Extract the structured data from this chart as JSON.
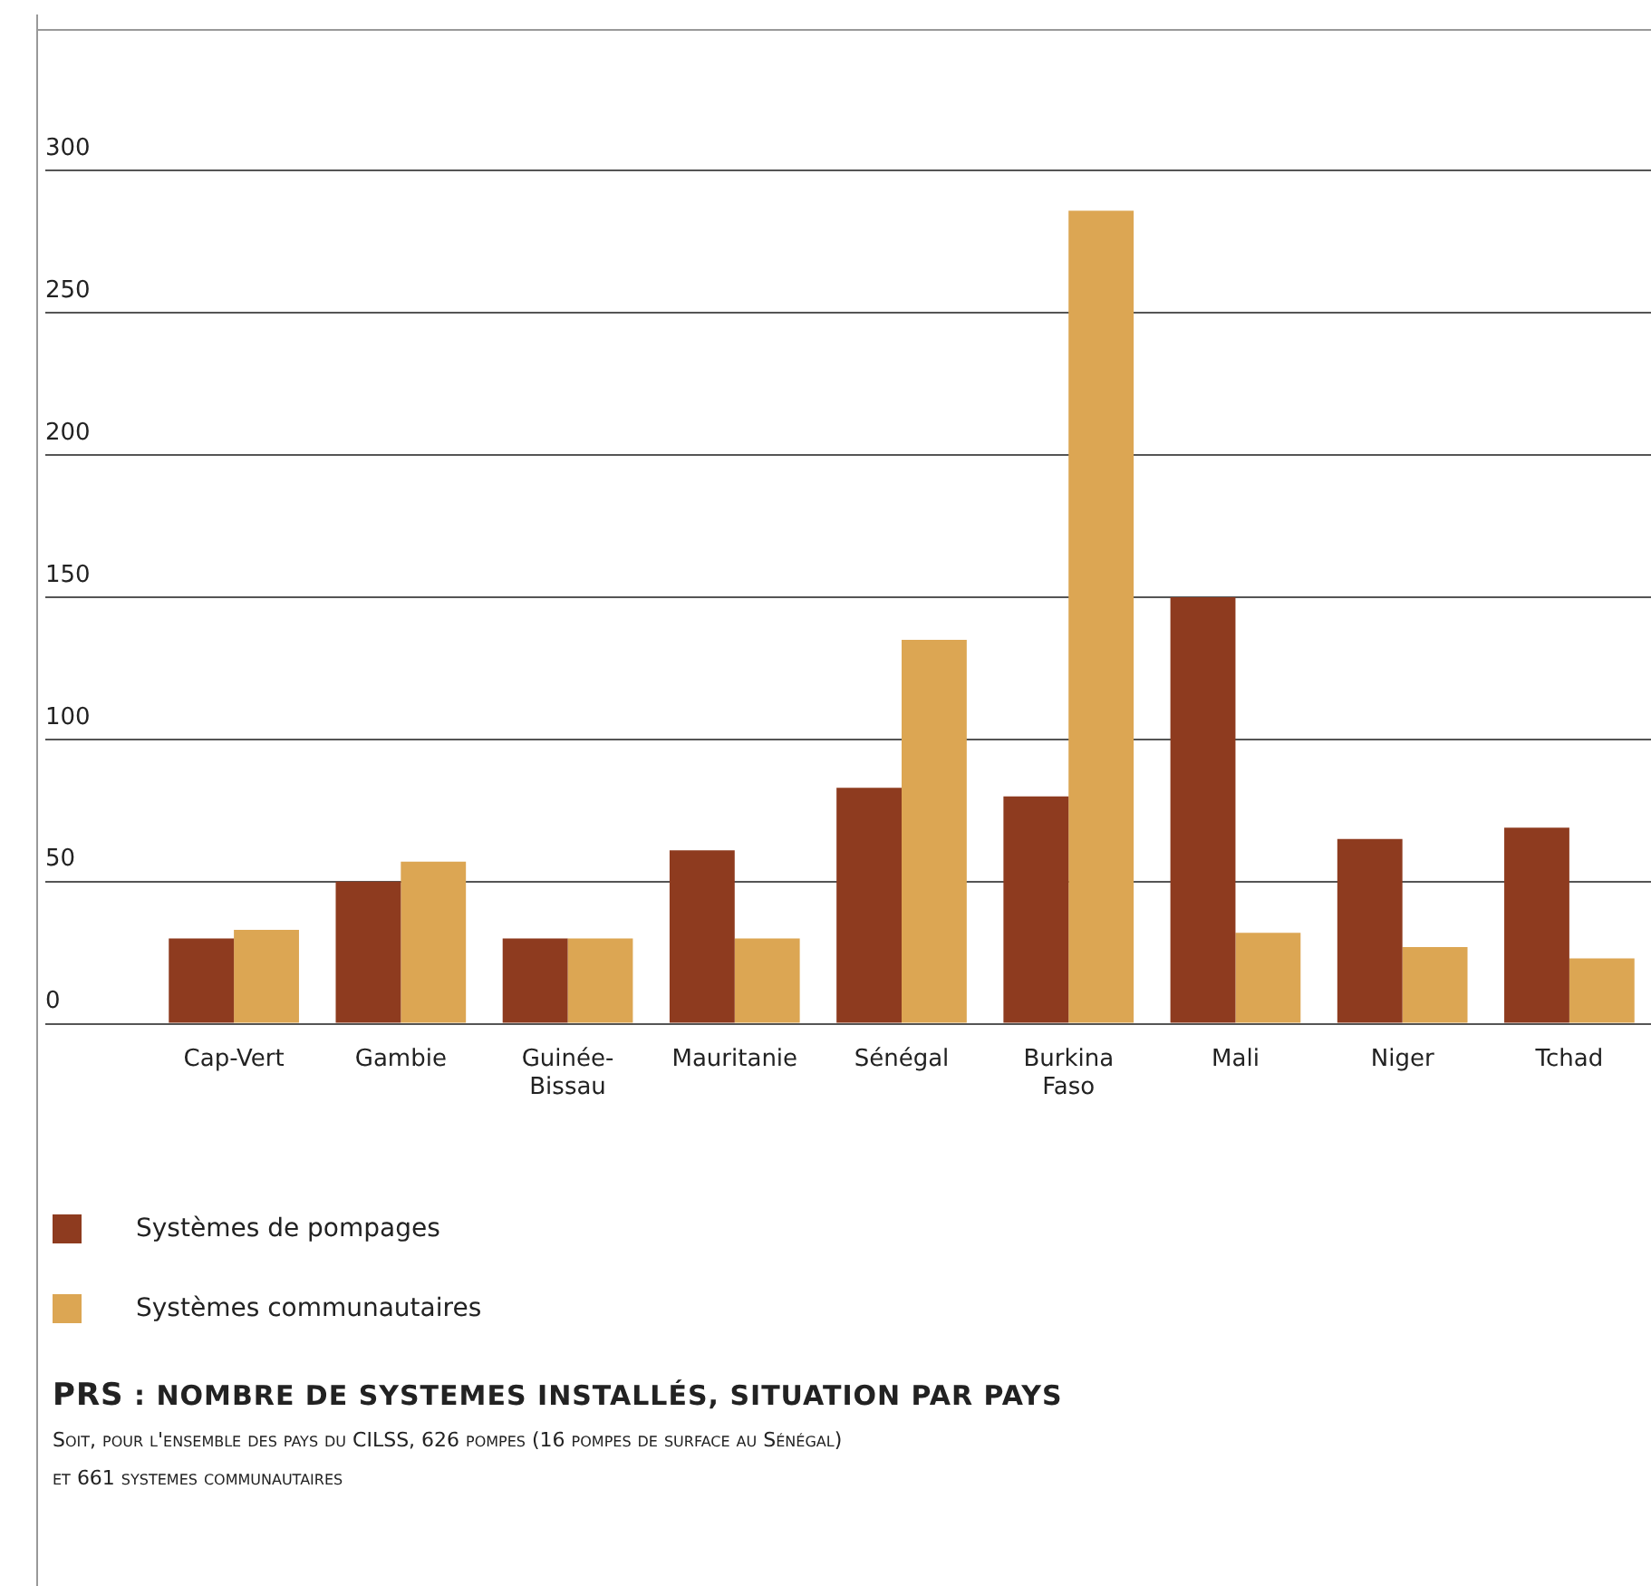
{
  "chart_data": {
    "type": "bar",
    "title": "PRS : NOMBRE DE SYSTEMES INSTALLÉS, SITUATION PAR PAYS",
    "annotations": [
      "Soit, pour l'ensemble des pays du CILSS, 626 pompes (16 pompes de surface au Sénégal)",
      "et 661 systemes communautaires"
    ],
    "categories": [
      "Cap-Vert",
      "Gambie",
      "Guinée-Bissau",
      "Mauritanie",
      "Sénégal",
      "Burkina Faso",
      "Mali",
      "Niger",
      "Tchad"
    ],
    "series": [
      {
        "name": "Systèmes de pompages",
        "color": "#8e3b1f",
        "values": [
          30,
          50,
          30,
          61,
          83,
          80,
          150,
          65,
          69
        ]
      },
      {
        "name": "Systèmes communautaires",
        "color": "#dca653",
        "values": [
          33,
          57,
          30,
          30,
          135,
          286,
          32,
          27,
          23
        ]
      }
    ],
    "ylim": [
      0,
      350
    ],
    "yticks": [
      0,
      50,
      100,
      150,
      200,
      250,
      300
    ],
    "grid": "y",
    "legend": "bottom"
  }
}
